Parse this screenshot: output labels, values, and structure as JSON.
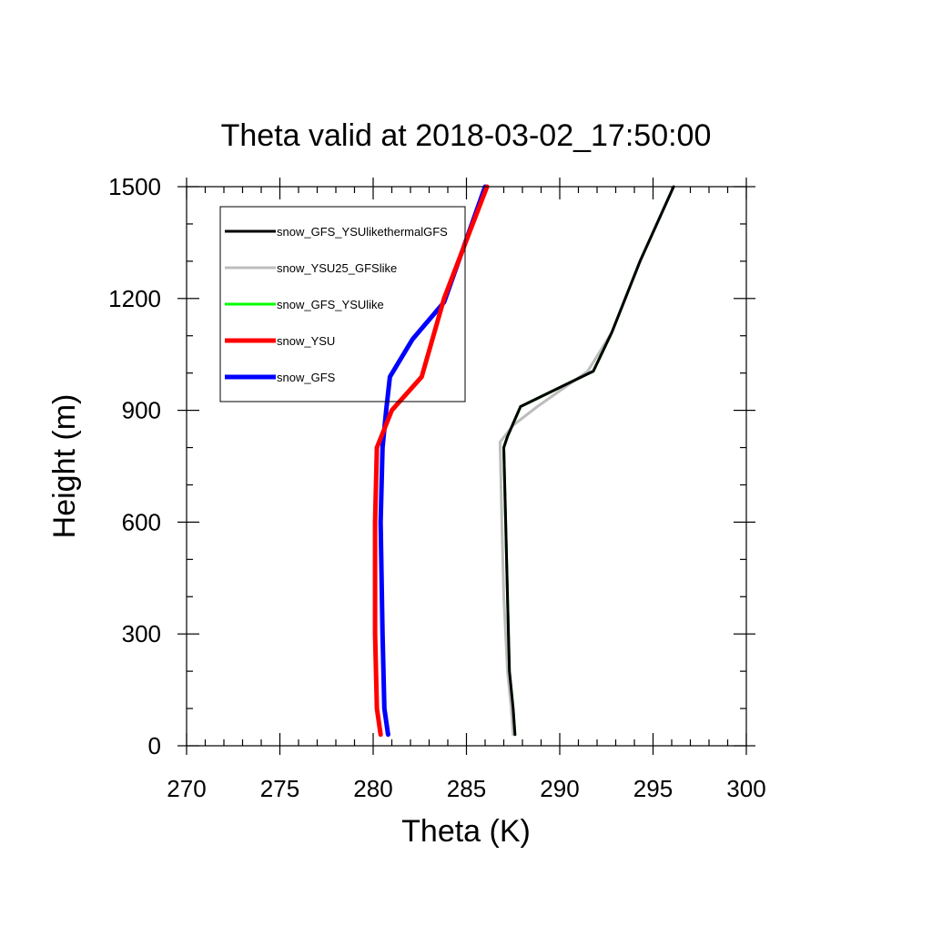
{
  "chart_data": {
    "type": "line",
    "title": "Theta valid at 2018-03-02_17:50:00",
    "xlabel": "Theta (K)",
    "ylabel": "Height (m)",
    "xlim": [
      270,
      300
    ],
    "ylim": [
      0,
      1500
    ],
    "xticks": [
      270,
      275,
      280,
      285,
      290,
      295,
      300
    ],
    "yticks": [
      0,
      300,
      600,
      900,
      1200,
      1500
    ],
    "grid": false,
    "legend_position": "top-left",
    "series": [
      {
        "name": "snow_GFS_YSUlikethermalGFS",
        "color": "#000000",
        "width": 3,
        "points": [
          [
            287.6,
            30
          ],
          [
            287.5,
            100
          ],
          [
            287.3,
            200
          ],
          [
            287.2,
            400
          ],
          [
            287.1,
            600
          ],
          [
            287.0,
            800
          ],
          [
            287.2,
            830
          ],
          [
            287.9,
            910
          ],
          [
            291.8,
            1005
          ],
          [
            292.8,
            1110
          ],
          [
            294.3,
            1300
          ],
          [
            296.1,
            1500
          ]
        ]
      },
      {
        "name": "snow_YSU25_GFSlike",
        "color": "#bdbdbd",
        "width": 3,
        "points": [
          [
            287.5,
            30
          ],
          [
            287.4,
            100
          ],
          [
            287.2,
            200
          ],
          [
            287.0,
            400
          ],
          [
            286.9,
            600
          ],
          [
            286.8,
            815
          ],
          [
            287.5,
            860
          ],
          [
            288.8,
            910
          ],
          [
            291.5,
            1005
          ],
          [
            292.8,
            1110
          ],
          [
            294.3,
            1300
          ],
          [
            296.1,
            1500
          ]
        ]
      },
      {
        "name": "snow_GFS_YSUlike",
        "color": "#00ff00",
        "width": 3,
        "points": [
          [
            287.6,
            30
          ],
          [
            287.5,
            100
          ],
          [
            287.3,
            200
          ],
          [
            287.2,
            400
          ],
          [
            287.1,
            600
          ],
          [
            287.0,
            800
          ],
          [
            287.2,
            830
          ],
          [
            287.9,
            910
          ],
          [
            291.8,
            1005
          ],
          [
            292.8,
            1110
          ],
          [
            294.3,
            1300
          ],
          [
            296.1,
            1500
          ]
        ]
      },
      {
        "name": "snow_YSU",
        "color": "#ff0000",
        "width": 5,
        "points": [
          [
            280.4,
            30
          ],
          [
            280.2,
            100
          ],
          [
            280.1,
            300
          ],
          [
            280.1,
            600
          ],
          [
            280.2,
            800
          ],
          [
            281.0,
            900
          ],
          [
            282.6,
            990
          ],
          [
            283.8,
            1200
          ],
          [
            286.1,
            1500
          ]
        ]
      },
      {
        "name": "snow_GFS",
        "color": "#0000ff",
        "width": 5,
        "points": [
          [
            280.8,
            30
          ],
          [
            280.6,
            100
          ],
          [
            280.5,
            300
          ],
          [
            280.4,
            600
          ],
          [
            280.5,
            800
          ],
          [
            280.7,
            900
          ],
          [
            280.9,
            990
          ],
          [
            282.1,
            1090
          ],
          [
            283.8,
            1190
          ],
          [
            286.0,
            1500
          ]
        ]
      }
    ]
  }
}
